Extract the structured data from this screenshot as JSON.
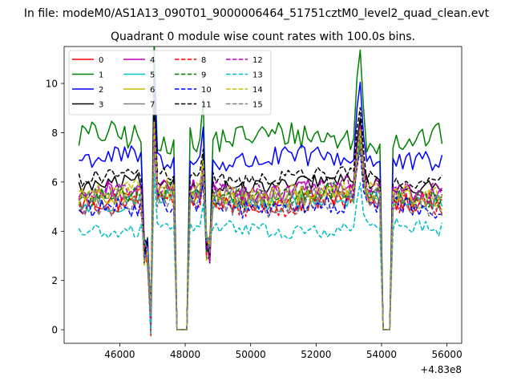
{
  "suptitle": "In file: modeM0/AS1A13_090T01_9000006464_51751cztM0_level2_quad_clean.evt",
  "chart_data": {
    "type": "line",
    "title": "Quadrant 0 module wise count rates with 100.0s bins.",
    "xlabel": "",
    "ylabel": "",
    "x_offset_label": "+4.83e8",
    "xlim": [
      44300,
      56450
    ],
    "ylim": [
      -0.55,
      11.5
    ],
    "xticks": [
      46000,
      48000,
      50000,
      52000,
      54000,
      56000
    ],
    "xtick_labels": [
      "46000",
      "48000",
      "50000",
      "52000",
      "54000",
      "56000"
    ],
    "yticks": [
      0,
      2,
      4,
      6,
      8,
      10
    ],
    "ytick_labels": [
      "0",
      "2",
      "4",
      "6",
      "8",
      "10"
    ],
    "grid": false,
    "legend_position": "top-left",
    "legend_columns": 4,
    "x_start": 44750,
    "x_end": 55850,
    "x_step": 100,
    "gaps": [
      {
        "x0": 46750,
        "x1": 46850,
        "level": 3.2
      },
      {
        "x0": 46950,
        "x1": 47000,
        "level": 0.35
      },
      {
        "x0": 47750,
        "x1": 48050,
        "level": 0.0
      },
      {
        "x0": 48650,
        "x1": 48750,
        "level": 3.3
      },
      {
        "x0": 54000,
        "x1": 54300,
        "level": 0.0
      }
    ],
    "spikes": [
      {
        "x": 47050,
        "factor": 1.5
      },
      {
        "x": 48550,
        "factor": 1.2
      },
      {
        "x": 53250,
        "factor": 1.3
      },
      {
        "x": 53350,
        "factor": 1.45
      },
      {
        "x": 53450,
        "factor": 1.15
      }
    ],
    "series": [
      {
        "name": "0",
        "color": "#ff0000",
        "dash": "solid",
        "mean": 5.3,
        "noise": 0.45
      },
      {
        "name": "1",
        "color": "#008000",
        "dash": "solid",
        "mean": 7.8,
        "noise": 0.55
      },
      {
        "name": "2",
        "color": "#0000ff",
        "dash": "solid",
        "mean": 6.9,
        "noise": 0.45
      },
      {
        "name": "3",
        "color": "#000000",
        "dash": "solid",
        "mean": 5.9,
        "noise": 0.3
      },
      {
        "name": "4",
        "color": "#bf00bf",
        "dash": "solid",
        "mean": 5.6,
        "noise": 0.4
      },
      {
        "name": "5",
        "color": "#00bfbf",
        "dash": "solid",
        "mean": 5.2,
        "noise": 0.4
      },
      {
        "name": "6",
        "color": "#bfbf00",
        "dash": "solid",
        "mean": 5.4,
        "noise": 0.4
      },
      {
        "name": "7",
        "color": "#808080",
        "dash": "solid",
        "mean": 5.5,
        "noise": 0.4
      },
      {
        "name": "8",
        "color": "#ff0000",
        "dash": "dashed",
        "mean": 5.1,
        "noise": 0.4
      },
      {
        "name": "9",
        "color": "#008000",
        "dash": "dashed",
        "mean": 5.5,
        "noise": 0.4
      },
      {
        "name": "10",
        "color": "#0000ff",
        "dash": "dashed",
        "mean": 5.0,
        "noise": 0.4
      },
      {
        "name": "11",
        "color": "#000000",
        "dash": "dashed",
        "mean": 6.2,
        "noise": 0.3
      },
      {
        "name": "12",
        "color": "#bf00bf",
        "dash": "dashed",
        "mean": 5.7,
        "noise": 0.4
      },
      {
        "name": "13",
        "color": "#00bfbf",
        "dash": "dashed",
        "mean": 4.1,
        "noise": 0.3
      },
      {
        "name": "14",
        "color": "#bfbf00",
        "dash": "dashed",
        "mean": 5.6,
        "noise": 0.4
      },
      {
        "name": "15",
        "color": "#808080",
        "dash": "dashed",
        "mean": 5.1,
        "noise": 0.4
      }
    ]
  }
}
